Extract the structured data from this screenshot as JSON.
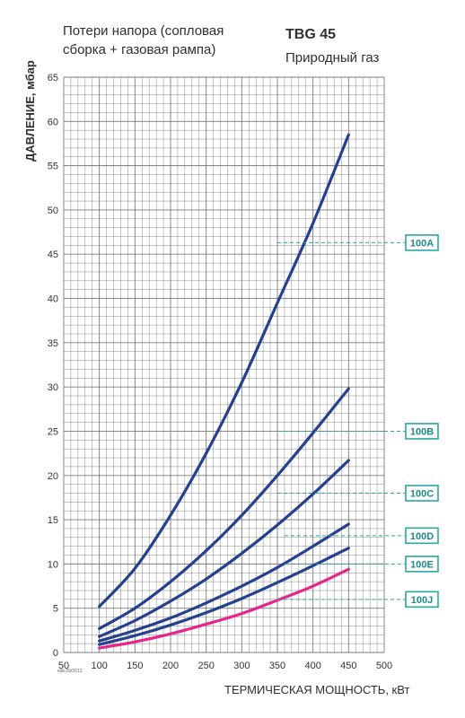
{
  "header": {
    "subtitle_line1": "Потери напора (сопловая",
    "subtitle_line2": "сборка + газовая рампа)",
    "model": "TBG 45",
    "gas": "Природный газ",
    "code": "edk.09/2012"
  },
  "colors": {
    "grid": "#7a7a7a",
    "curve": "#24408f",
    "highlight": "#e6248a",
    "tag": "#2aa6a6"
  },
  "chart_data": {
    "type": "line",
    "xlabel": "ТЕРМИЧЕСКАЯ МОЩНОСТЬ, кВт",
    "ylabel": "ДАВЛЕНИЕ, мбар",
    "xlim": [
      50,
      500
    ],
    "ylim": [
      0,
      65
    ],
    "xticks": [
      "50",
      "100",
      "150",
      "200",
      "250",
      "300",
      "350",
      "400",
      "450",
      "500"
    ],
    "yticks": [
      "0",
      "5",
      "10",
      "15",
      "20",
      "25",
      "30",
      "35",
      "40",
      "45",
      "50",
      "55",
      "60",
      "65"
    ],
    "grid": true,
    "series": [
      {
        "name": "100A",
        "color": "#24408f",
        "x": [
          100,
          150,
          200,
          250,
          300,
          350,
          400,
          450
        ],
        "y": [
          5.2,
          9.5,
          15.5,
          22.5,
          30.5,
          39.5,
          48.5,
          58.5
        ]
      },
      {
        "name": "100B",
        "color": "#24408f",
        "x": [
          100,
          150,
          200,
          250,
          300,
          350,
          400,
          450
        ],
        "y": [
          2.7,
          5.0,
          8.0,
          11.5,
          15.5,
          20.0,
          24.8,
          29.8
        ]
      },
      {
        "name": "100C",
        "color": "#24408f",
        "x": [
          100,
          150,
          200,
          250,
          300,
          350,
          400,
          450
        ],
        "y": [
          1.8,
          3.6,
          5.8,
          8.3,
          11.2,
          14.4,
          17.9,
          21.7
        ]
      },
      {
        "name": "100D",
        "color": "#24408f",
        "x": [
          100,
          150,
          200,
          250,
          300,
          350,
          400,
          450
        ],
        "y": [
          1.3,
          2.5,
          3.9,
          5.6,
          7.5,
          9.6,
          12.0,
          14.5
        ]
      },
      {
        "name": "100E",
        "color": "#24408f",
        "x": [
          100,
          150,
          200,
          250,
          300,
          350,
          400,
          450
        ],
        "y": [
          0.9,
          1.9,
          3.1,
          4.5,
          6.1,
          7.9,
          9.8,
          11.8
        ]
      },
      {
        "name": "100J",
        "color": "#e6248a",
        "x": [
          100,
          150,
          200,
          250,
          300,
          350,
          400,
          450
        ],
        "y": [
          0.5,
          1.2,
          2.1,
          3.2,
          4.4,
          5.9,
          7.5,
          9.4
        ]
      }
    ],
    "labels": [
      {
        "text": "100A",
        "x": 350,
        "y": 46.3
      },
      {
        "text": "100B",
        "x": 350,
        "y": 25.0
      },
      {
        "text": "100C",
        "x": 350,
        "y": 18.0
      },
      {
        "text": "100D",
        "x": 360,
        "y": 13.2
      },
      {
        "text": "100E",
        "x": 360,
        "y": 10.0
      },
      {
        "text": "100J",
        "x": 350,
        "y": 6.0
      }
    ]
  }
}
